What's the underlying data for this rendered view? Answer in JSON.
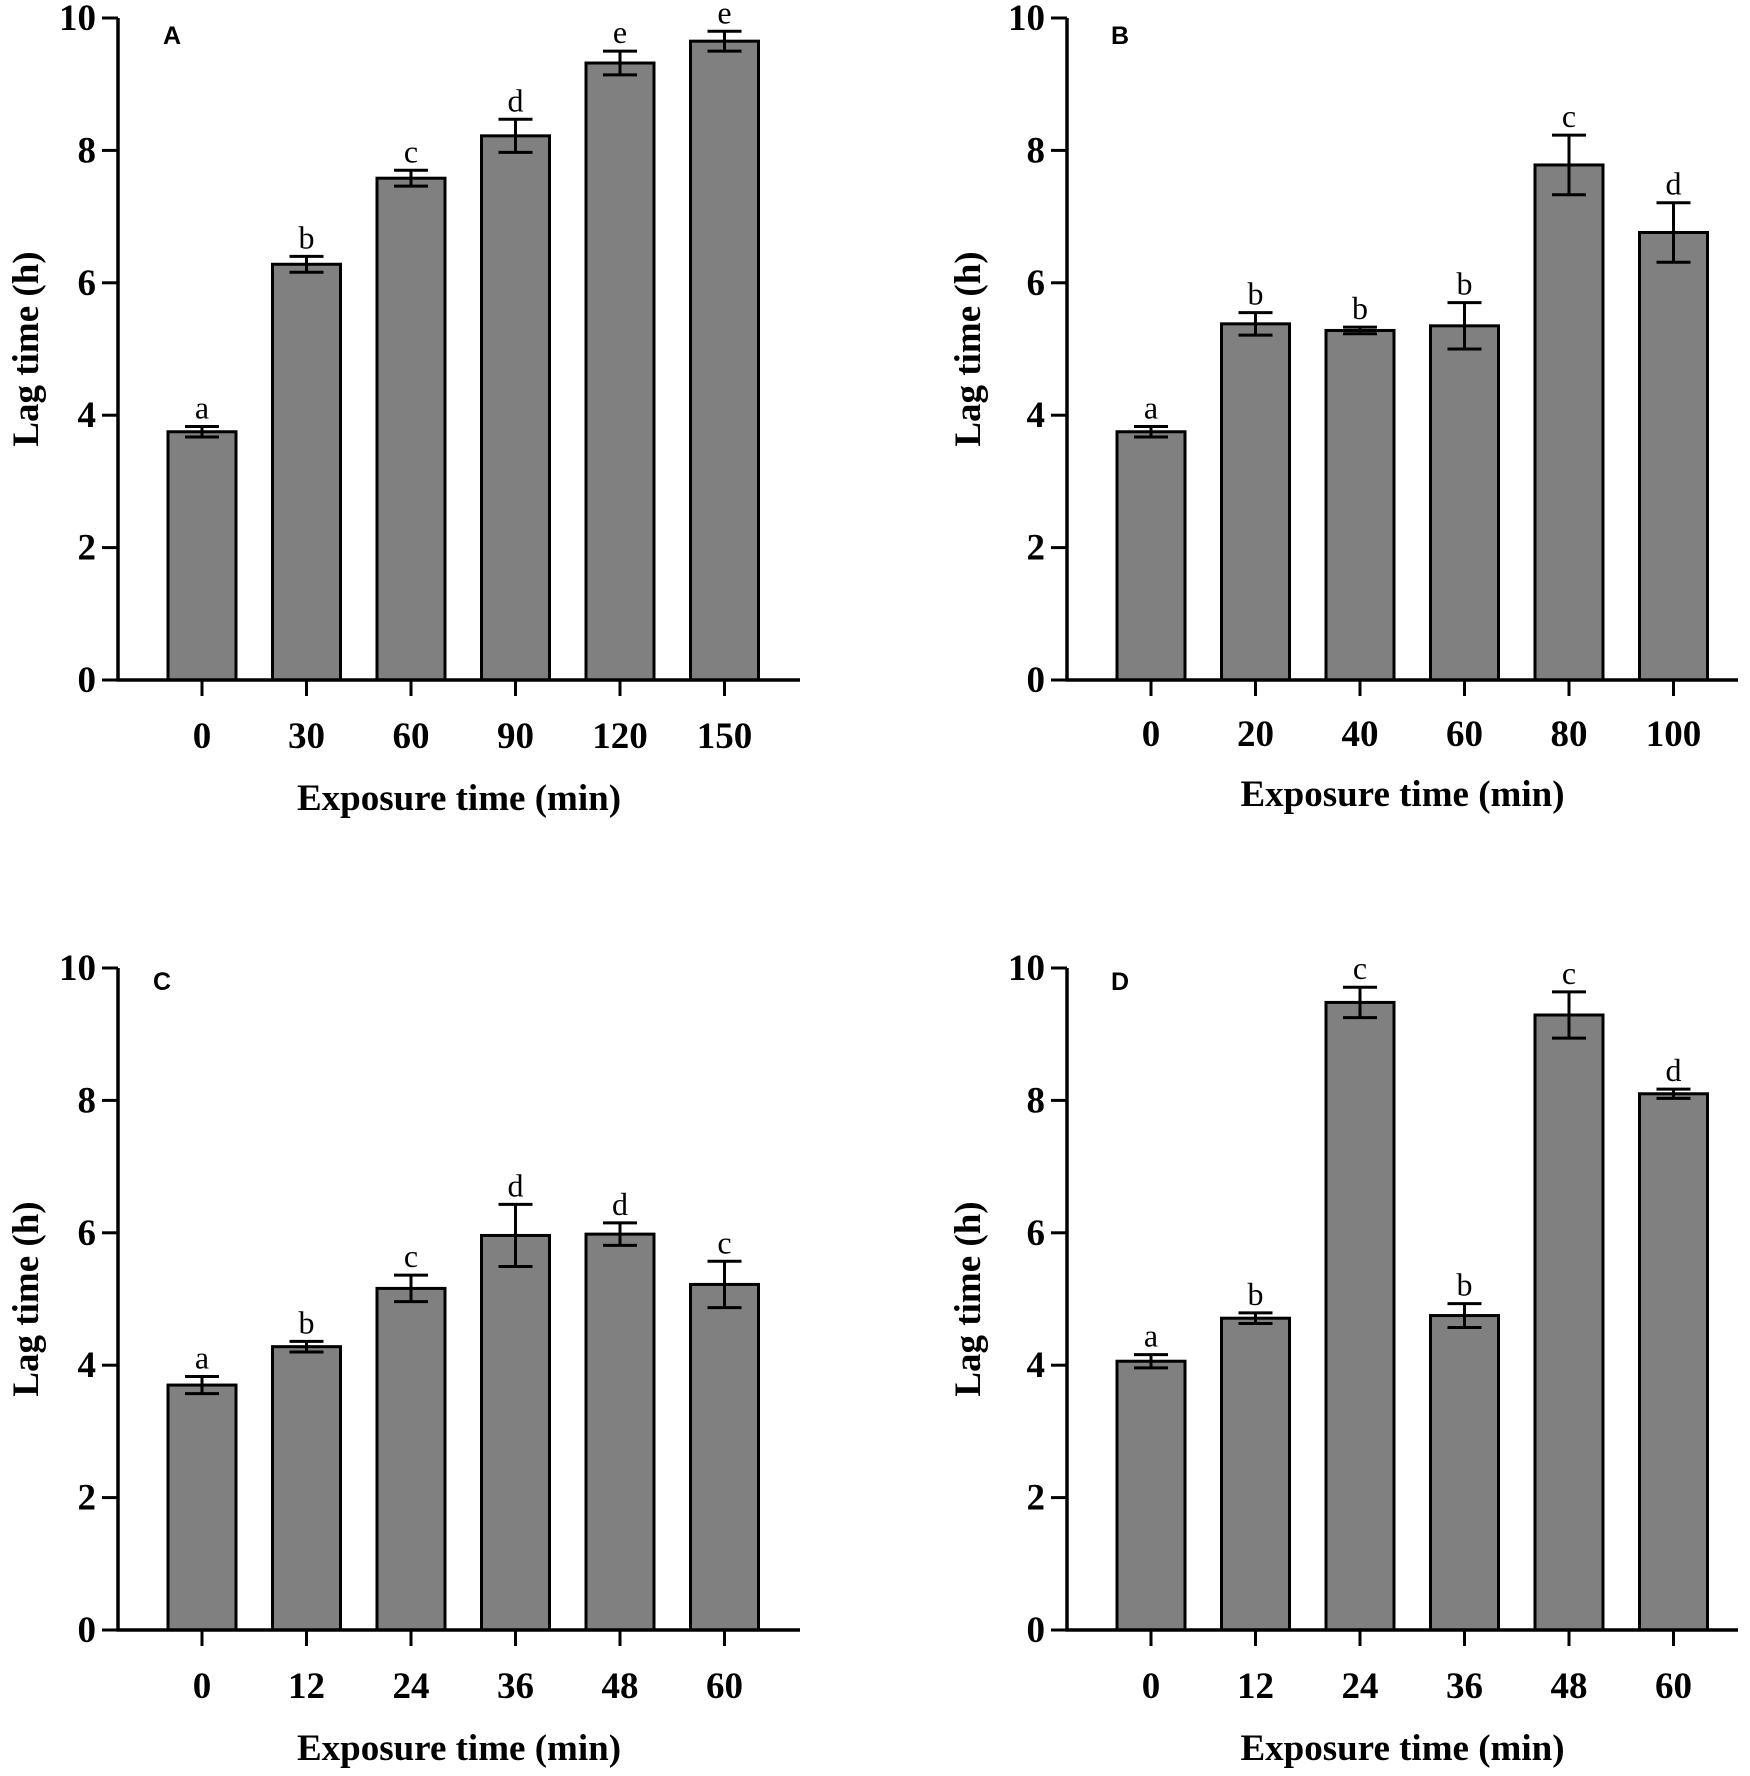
{
  "chart_data": [
    {
      "type": "bar",
      "panel": "A",
      "categories": [
        "0",
        "30",
        "60",
        "90",
        "120",
        "150"
      ],
      "values": [
        3.75,
        6.28,
        7.58,
        8.22,
        9.32,
        9.65
      ],
      "errors": [
        0.08,
        0.12,
        0.12,
        0.25,
        0.18,
        0.15
      ],
      "labels": [
        "a",
        "b",
        "c",
        "d",
        "e",
        "e"
      ],
      "xlabel": "Exposure time (min)",
      "ylabel": "Lag time (h)",
      "ylim": [
        0,
        10
      ],
      "yticks": [
        0,
        2,
        4,
        6,
        8,
        10
      ],
      "bar_color": "#808080"
    },
    {
      "type": "bar",
      "panel": "B",
      "categories": [
        "0",
        "20",
        "40",
        "60",
        "80",
        "100"
      ],
      "values": [
        3.75,
        5.38,
        5.28,
        5.35,
        7.78,
        6.76
      ],
      "errors": [
        0.08,
        0.17,
        0.05,
        0.35,
        0.45,
        0.45
      ],
      "labels": [
        "a",
        "b",
        "b",
        "b",
        "c",
        "d"
      ],
      "xlabel": "Exposure time (min)",
      "ylabel": "Lag time (h)",
      "ylim": [
        0,
        10
      ],
      "yticks": [
        0,
        2,
        4,
        6,
        8,
        10
      ],
      "bar_color": "#808080"
    },
    {
      "type": "bar",
      "panel": "C",
      "categories": [
        "0",
        "12",
        "24",
        "36",
        "48",
        "60"
      ],
      "values": [
        3.7,
        4.28,
        5.16,
        5.96,
        5.98,
        5.22
      ],
      "errors": [
        0.13,
        0.08,
        0.2,
        0.47,
        0.17,
        0.35
      ],
      "labels": [
        "a",
        "b",
        "c",
        "d",
        "d",
        "c"
      ],
      "xlabel": "Exposure time (min)",
      "ylabel": "Lag time (h)",
      "ylim": [
        0,
        10
      ],
      "yticks": [
        0,
        2,
        4,
        6,
        8,
        10
      ],
      "bar_color": "#808080"
    },
    {
      "type": "bar",
      "panel": "D",
      "categories": [
        "0",
        "12",
        "24",
        "36",
        "48",
        "60"
      ],
      "values": [
        4.06,
        4.71,
        9.48,
        4.75,
        9.29,
        8.1
      ],
      "errors": [
        0.1,
        0.08,
        0.23,
        0.18,
        0.35,
        0.07
      ],
      "labels": [
        "a",
        "b",
        "c",
        "b",
        "c",
        "d"
      ],
      "xlabel": "Exposure time (min)",
      "ylabel": "Lag time (h)",
      "ylim": [
        0,
        10
      ],
      "yticks": [
        0,
        2,
        4,
        6,
        8,
        10
      ],
      "bar_color": "#808080"
    }
  ]
}
